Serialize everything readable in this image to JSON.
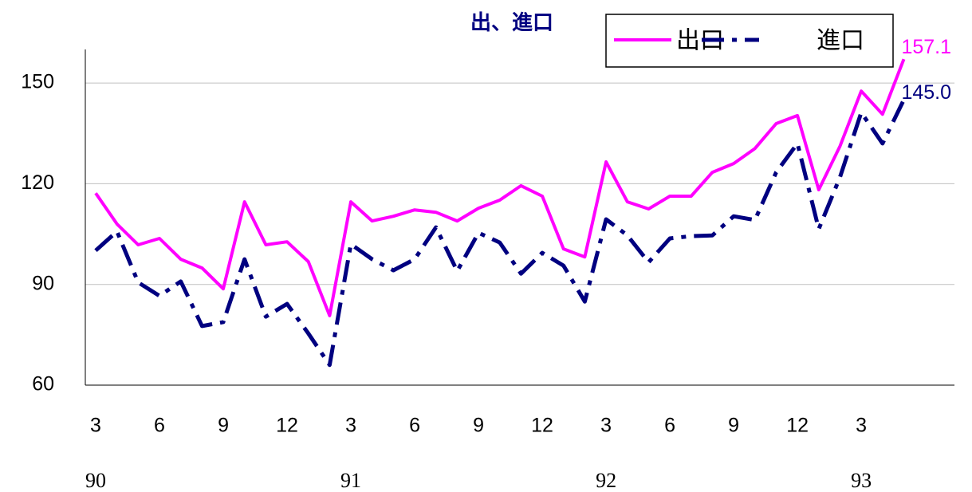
{
  "chart_data": {
    "type": "line",
    "title": "出、進口",
    "categories": [
      "3",
      null,
      null,
      "6",
      null,
      null,
      "9",
      null,
      null,
      "12",
      null,
      null,
      "3",
      null,
      null,
      "6",
      null,
      null,
      "9",
      null,
      null,
      "12",
      null,
      null,
      "3",
      null,
      null,
      "6",
      null,
      null,
      "9",
      null,
      null,
      "12",
      null,
      null,
      "3",
      null,
      null
    ],
    "years": [
      "90",
      null,
      null,
      null,
      null,
      null,
      null,
      null,
      null,
      null,
      null,
      null,
      "91",
      null,
      null,
      null,
      null,
      null,
      null,
      null,
      null,
      null,
      null,
      null,
      "92",
      null,
      null,
      null,
      null,
      null,
      null,
      null,
      null,
      null,
      null,
      null,
      "93",
      null,
      null
    ],
    "series": [
      {
        "name": "出口",
        "color": "#ff00ff",
        "values": [
          117.2,
          108,
          101.8,
          103.7,
          97.5,
          94.9,
          88.7,
          114.6,
          101.8,
          102.7,
          96.8,
          80.7,
          114.6,
          108.9,
          110.3,
          112.2,
          111.5,
          108.9,
          112.7,
          115.1,
          119.4,
          116.3,
          100.6,
          98.2,
          126.5,
          114.6,
          112.5,
          116.3,
          116.3,
          123.4,
          126,
          130.5,
          137.9,
          140.3,
          118.2,
          131.2,
          147.6,
          140.7,
          157.1
        ],
        "value_labels": [
          null,
          null,
          null,
          null,
          null,
          null,
          null,
          null,
          null,
          null,
          null,
          null,
          null,
          null,
          null,
          null,
          null,
          null,
          null,
          null,
          null,
          null,
          null,
          null,
          null,
          null,
          null,
          null,
          null,
          null,
          null,
          null,
          null,
          null,
          null,
          null,
          null,
          null,
          "157.1"
        ]
      },
      {
        "name": "進口",
        "color": "#000080",
        "values": [
          100.1,
          105.8,
          90.6,
          86.6,
          90.9,
          77.6,
          78.8,
          97.5,
          80.4,
          84.2,
          75.4,
          66,
          102,
          97.5,
          94.2,
          97.5,
          107,
          94,
          105.4,
          102.5,
          93.2,
          99.4,
          95.6,
          84.9,
          109.4,
          104.6,
          96.6,
          103.7,
          104.4,
          104.6,
          110.3,
          109.2,
          123.4,
          132,
          106.5,
          122,
          141.2,
          132,
          145.0
        ],
        "value_labels": [
          null,
          null,
          null,
          null,
          null,
          null,
          null,
          null,
          null,
          null,
          null,
          null,
          null,
          null,
          null,
          null,
          null,
          null,
          null,
          null,
          null,
          null,
          null,
          null,
          null,
          null,
          null,
          null,
          null,
          null,
          null,
          null,
          null,
          null,
          null,
          null,
          null,
          null,
          "145.0"
        ]
      }
    ],
    "ylim": [
      60,
      160
    ],
    "yticks": [
      60,
      90,
      120,
      150
    ],
    "grid": true
  }
}
